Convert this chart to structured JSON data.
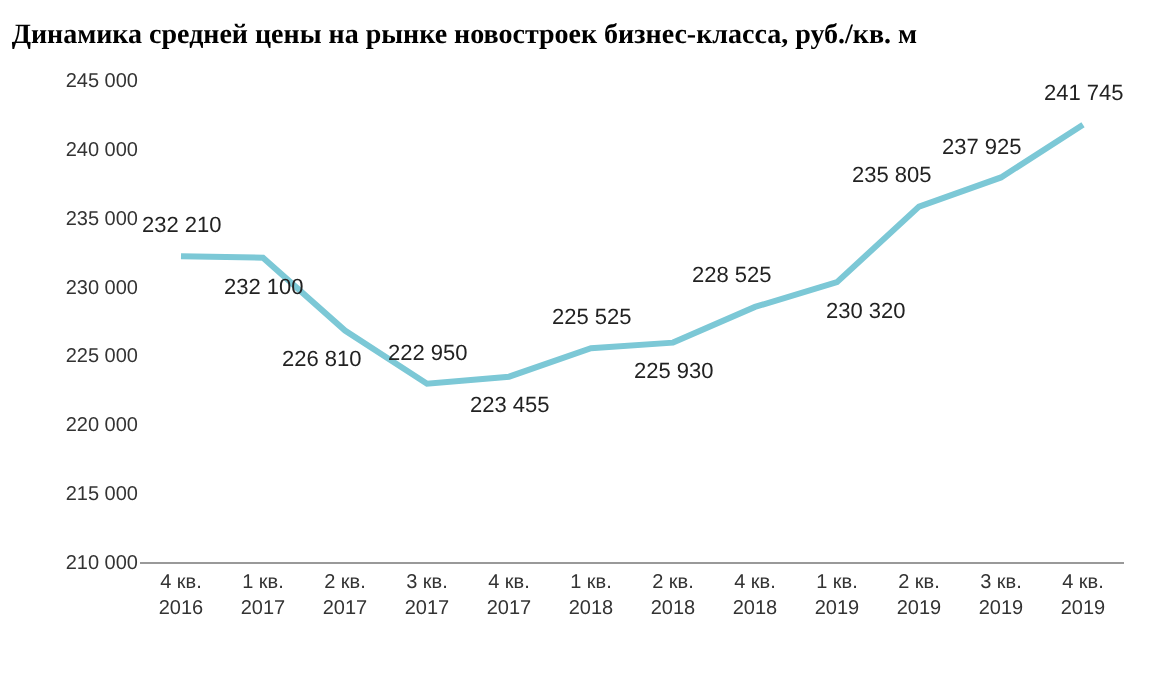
{
  "chart_data": {
    "type": "line",
    "title": "Динамика средней цены на рынке новостроек бизнес-класса, руб./кв. м",
    "categories": [
      "4 кв.\n2016",
      "1 кв.\n2017",
      "2 кв.\n2017",
      "3 кв.\n2017",
      "4 кв.\n2017",
      "1 кв.\n2018",
      "2 кв.\n2018",
      "4 кв.\n2018",
      "1 кв.\n2019",
      "2 кв.\n2019",
      "3 кв.\n2019",
      "4 кв.\n2019"
    ],
    "series": [
      {
        "color": "#7cc8d6",
        "values": [
          232210,
          232100,
          226810,
          222950,
          223455,
          225525,
          225930,
          228525,
          230320,
          235805,
          237925,
          241745
        ],
        "value_labels": [
          "232 210",
          "232 100",
          "226 810",
          "222 950",
          "223 455",
          "225 525",
          "225 930",
          "228 525",
          "230 320",
          "235 805",
          "237 925",
          "241 745"
        ]
      }
    ],
    "ylim": [
      210000,
      245000
    ],
    "yticks": [
      {
        "value": 210000,
        "label": "210 000"
      },
      {
        "value": 215000,
        "label": "215 000"
      },
      {
        "value": 220000,
        "label": "220 000"
      },
      {
        "value": 225000,
        "label": "225 000"
      },
      {
        "value": 230000,
        "label": "230 000"
      },
      {
        "value": 235000,
        "label": "235 000"
      },
      {
        "value": 240000,
        "label": "240 000"
      },
      {
        "value": 245000,
        "label": "245 000"
      }
    ],
    "marker": "none",
    "line_style": "solid",
    "legend": false
  }
}
